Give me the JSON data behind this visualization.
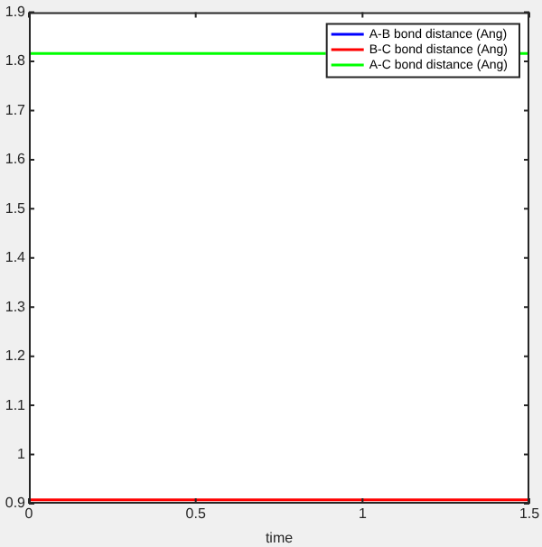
{
  "chart_data": {
    "type": "line",
    "xlabel": "time",
    "x": [
      0,
      1.5
    ],
    "series": [
      {
        "name": "A-B bond distance (Ang)",
        "color": "#0000ff",
        "values": [
          null,
          null
        ]
      },
      {
        "name": "B-C bond distance (Ang)",
        "color": "#ff0000",
        "values": [
          0.908,
          0.908
        ]
      },
      {
        "name": "A-C bond distance (Ang)",
        "color": "#00ff00",
        "values": [
          1.816,
          1.816
        ]
      }
    ],
    "xlim": [
      0,
      1.5
    ],
    "xticks": [
      0,
      0.5,
      1,
      1.5
    ],
    "ylim": [
      0.9,
      1.9
    ],
    "yticks": [
      0.9,
      1,
      1.1,
      1.2,
      1.3,
      1.4,
      1.5,
      1.6,
      1.7,
      1.8,
      1.9
    ],
    "legend": "top right",
    "grid": false,
    "marker": "none",
    "line_style": "solid"
  }
}
